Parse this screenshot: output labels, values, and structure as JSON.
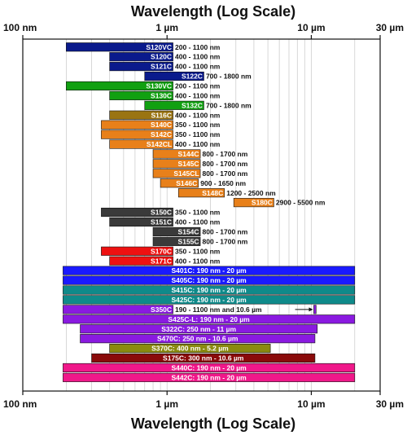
{
  "chart_data": {
    "type": "bar",
    "orientation": "horizontal",
    "title": "Wavelength (Log Scale)",
    "xlabel": "Wavelength (Log Scale)",
    "xscale": "log",
    "xlim_nm": [
      100,
      30000
    ],
    "x_ticks": [
      {
        "value": 100,
        "label": "100 nm"
      },
      {
        "value": 1000,
        "label": "1 µm"
      },
      {
        "value": 10000,
        "label": "10 µm"
      },
      {
        "value": 30000,
        "label": "30 µm"
      }
    ],
    "grid": true,
    "bars": [
      {
        "name": "S120VC",
        "range_label": "200 - 1100 nm",
        "start": 200,
        "end": 1100,
        "color": "#0a1a8c"
      },
      {
        "name": "S120C",
        "range_label": "400 - 1100 nm",
        "start": 400,
        "end": 1100,
        "color": "#0a1a8c"
      },
      {
        "name": "S121C",
        "range_label": "400 - 1100 nm",
        "start": 400,
        "end": 1100,
        "color": "#0a1a8c"
      },
      {
        "name": "S122C",
        "range_label": "700 - 1800 nm",
        "start": 700,
        "end": 1800,
        "color": "#0a1a8c"
      },
      {
        "name": "S130VC",
        "range_label": "200 - 1100 nm",
        "start": 200,
        "end": 1100,
        "color": "#11a011"
      },
      {
        "name": "S130C",
        "range_label": "400 - 1100 nm",
        "start": 400,
        "end": 1100,
        "color": "#11a011"
      },
      {
        "name": "S132C",
        "range_label": "700 - 1800 nm",
        "start": 700,
        "end": 1800,
        "color": "#11a011"
      },
      {
        "name": "S116C",
        "range_label": "400 - 1100 nm",
        "start": 400,
        "end": 1100,
        "color": "#9a7412"
      },
      {
        "name": "S140C",
        "range_label": "350 - 1100 nm",
        "start": 350,
        "end": 1100,
        "color": "#e8801a"
      },
      {
        "name": "S142C",
        "range_label": "350 - 1100 nm",
        "start": 350,
        "end": 1100,
        "color": "#e8801a"
      },
      {
        "name": "S142CL",
        "range_label": "400 - 1100 nm",
        "start": 400,
        "end": 1100,
        "color": "#e8801a"
      },
      {
        "name": "S144C",
        "range_label": "800 - 1700 nm",
        "start": 800,
        "end": 1700,
        "color": "#e8801a"
      },
      {
        "name": "S145C",
        "range_label": "800 - 1700 nm",
        "start": 800,
        "end": 1700,
        "color": "#e8801a"
      },
      {
        "name": "S145CL",
        "range_label": "800 - 1700 nm",
        "start": 800,
        "end": 1700,
        "color": "#e8801a"
      },
      {
        "name": "S146C",
        "range_label": "900 - 1650 nm",
        "start": 900,
        "end": 1650,
        "color": "#e8801a"
      },
      {
        "name": "S148C",
        "range_label": "1200 - 2500 nm",
        "start": 1200,
        "end": 2500,
        "color": "#e8801a"
      },
      {
        "name": "S180C",
        "range_label": "2900 - 5500 nm",
        "start": 2900,
        "end": 5500,
        "color": "#e8801a"
      },
      {
        "name": "S150C",
        "range_label": "350 - 1100 nm",
        "start": 350,
        "end": 1100,
        "color": "#3a3a3a"
      },
      {
        "name": "S151C",
        "range_label": "400 - 1100 nm",
        "start": 400,
        "end": 1100,
        "color": "#3a3a3a"
      },
      {
        "name": "S154C",
        "range_label": "800 - 1700 nm",
        "start": 800,
        "end": 1700,
        "color": "#3a3a3a"
      },
      {
        "name": "S155C",
        "range_label": "800 - 1700 nm",
        "start": 800,
        "end": 1700,
        "color": "#3a3a3a"
      },
      {
        "name": "S170C",
        "range_label": "350 - 1100 nm",
        "start": 350,
        "end": 1100,
        "color": "#ee1111"
      },
      {
        "name": "S171C",
        "range_label": "400 - 1100 nm",
        "start": 400,
        "end": 1100,
        "color": "#ee1111"
      },
      {
        "name": "S401C",
        "range_label": "190 nm - 20 µm",
        "start": 190,
        "end": 20000,
        "color": "#1a1aff",
        "label_inside": true
      },
      {
        "name": "S405C",
        "range_label": "190 nm - 20 µm",
        "start": 190,
        "end": 20000,
        "color": "#1a1aff",
        "label_inside": true
      },
      {
        "name": "S415C",
        "range_label": "190 nm - 20 µm",
        "start": 190,
        "end": 20000,
        "color": "#0f8a8a",
        "label_inside": true
      },
      {
        "name": "S425C",
        "range_label": "190 nm - 20 µm",
        "start": 190,
        "end": 20000,
        "color": "#0f8a8a",
        "label_inside": true
      },
      {
        "name": "S350C",
        "range_label": "190 - 1100 nm and 10.6 µm",
        "start": 190,
        "end": 1100,
        "extra_start": 10400,
        "extra_end": 10800,
        "color": "#8a1ae0"
      },
      {
        "name": "S425C-L",
        "range_label": "190 nm - 20 µm",
        "start": 190,
        "end": 20000,
        "color": "#8a1ae0",
        "label_inside": true
      },
      {
        "name": "S322C",
        "range_label": "250 nm - 11 µm",
        "start": 250,
        "end": 11000,
        "color": "#8a1ae0",
        "label_inside": true
      },
      {
        "name": "S470C",
        "range_label": "250 nm - 10.6 µm",
        "start": 250,
        "end": 10600,
        "color": "#8a1ae0",
        "label_inside": true
      },
      {
        "name": "S370C",
        "range_label": "400 nm - 5.2 µm",
        "start": 400,
        "end": 5200,
        "color": "#8a8a10",
        "label_inside": true
      },
      {
        "name": "S175C",
        "range_label": "300 nm - 10.6 µm",
        "start": 300,
        "end": 10600,
        "color": "#8a0a0a",
        "label_inside": true
      },
      {
        "name": "S440C",
        "range_label": "190 nm - 20 µm",
        "start": 190,
        "end": 20000,
        "color": "#f0188a",
        "label_inside": true
      },
      {
        "name": "S442C",
        "range_label": "190 nm - 20 µm",
        "start": 190,
        "end": 20000,
        "color": "#f0188a",
        "label_inside": true
      }
    ]
  }
}
